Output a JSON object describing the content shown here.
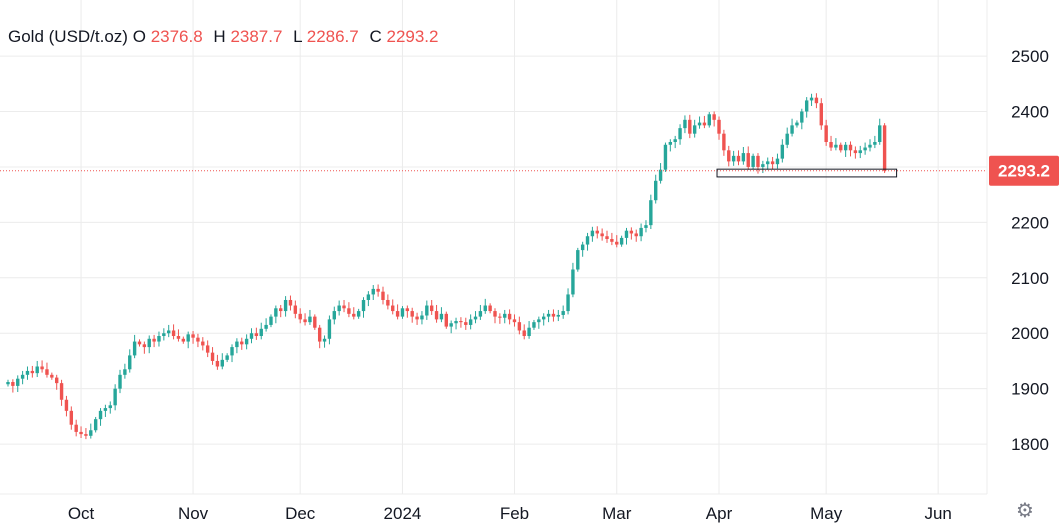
{
  "legend": {
    "symbol": "Gold (USD/t.oz)",
    "o_label": "O",
    "o_value": "2376.8",
    "h_label": "H",
    "h_value": "2387.7",
    "l_label": "L",
    "l_value": "2286.7",
    "c_label": "C",
    "c_value": "2293.2"
  },
  "colors": {
    "up": "#26a69a",
    "down": "#ef5350",
    "grid": "#ececec",
    "text": "#131722",
    "axis": "#d1d4dc"
  },
  "chart_data": {
    "type": "candlestick",
    "title": "Gold (USD/t.oz)",
    "ylim": [
      1710,
      2600
    ],
    "y_ticks": [
      1800,
      1900,
      2000,
      2100,
      2200,
      2300,
      2400,
      2500
    ],
    "x_ticks": [
      {
        "label": "Oct",
        "index": 15
      },
      {
        "label": "Nov",
        "index": 38
      },
      {
        "label": "Dec",
        "index": 60
      },
      {
        "label": "2024",
        "index": 81
      },
      {
        "label": "Feb",
        "index": 104
      },
      {
        "label": "Mar",
        "index": 125
      },
      {
        "label": "Apr",
        "index": 146
      },
      {
        "label": "May",
        "index": 168
      },
      {
        "label": "Jun",
        "index": 191
      }
    ],
    "last_price": 2293.2,
    "last_price_label": "2293.2",
    "close": [
      1912,
      1905,
      1918,
      1925,
      1932,
      1928,
      1940,
      1935,
      1925,
      1920,
      1910,
      1880,
      1860,
      1835,
      1822,
      1818,
      1815,
      1825,
      1845,
      1860,
      1865,
      1870,
      1900,
      1925,
      1935,
      1960,
      1985,
      1980,
      1975,
      1990,
      1985,
      1995,
      2000,
      2005,
      1995,
      1990,
      1985,
      1998,
      1992,
      1985,
      1978,
      1965,
      1950,
      1940,
      1952,
      1960,
      1975,
      1985,
      1980,
      1990,
      2000,
      1995,
      2008,
      2015,
      2030,
      2045,
      2040,
      2060,
      2050,
      2035,
      2025,
      2020,
      2030,
      2010,
      1985,
      1990,
      2025,
      2040,
      2050,
      2045,
      2035,
      2030,
      2040,
      2060,
      2070,
      2080,
      2075,
      2060,
      2050,
      2040,
      2030,
      2045,
      2040,
      2030,
      2025,
      2032,
      2050,
      2040,
      2025,
      2035,
      2012,
      2018,
      2022,
      2020,
      2015,
      2025,
      2030,
      2040,
      2050,
      2040,
      2030,
      2028,
      2035,
      2025,
      2020,
      2005,
      1995,
      2010,
      2020,
      2025,
      2030,
      2035,
      2030,
      2033,
      2040,
      2070,
      2115,
      2150,
      2160,
      2175,
      2185,
      2180,
      2175,
      2170,
      2165,
      2160,
      2172,
      2185,
      2180,
      2175,
      2190,
      2195,
      2240,
      2275,
      2295,
      2340,
      2345,
      2350,
      2370,
      2385,
      2360,
      2375,
      2380,
      2375,
      2395,
      2385,
      2360,
      2330,
      2310,
      2320,
      2310,
      2325,
      2300,
      2320,
      2300,
      2305,
      2310,
      2305,
      2315,
      2340,
      2360,
      2375,
      2380,
      2400,
      2420,
      2425,
      2415,
      2375,
      2345,
      2335,
      2340,
      2330,
      2340,
      2330,
      2325,
      2330,
      2335,
      2340,
      2345,
      2375,
      2293.2
    ]
  }
}
